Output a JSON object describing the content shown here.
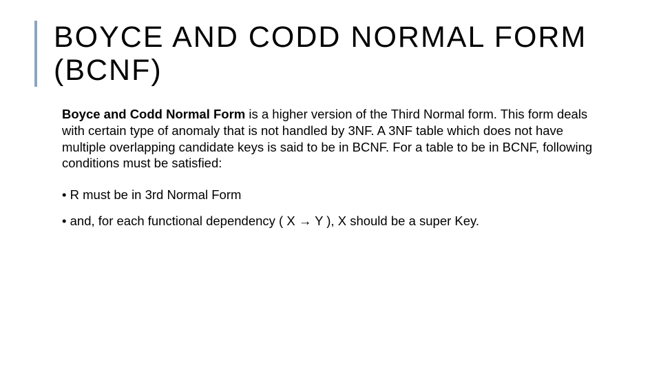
{
  "title": "BOYCE AND CODD NORMAL FORM (BCNF)",
  "paragraph": {
    "lead": "Boyce and Codd Normal Form",
    "rest": " is a higher version of the Third Normal form. This form deals with certain type of anomaly that is not handled by 3NF. A 3NF table which does not have multiple overlapping candidate keys is said to be in BCNF. For a table to be in BCNF, following conditions must be satisfied:"
  },
  "bullets": [
    "R must be in 3rd Normal Form",
    "and, for each functional dependency ( X → Y ), X should be a super Key."
  ],
  "colors": {
    "accent": "#8ca5c0",
    "background": "#ffffff",
    "text": "#000000"
  },
  "typography": {
    "title_fontsize": 43,
    "title_letterspacing": 2,
    "body_fontsize": 18.5,
    "font_family": "Arial"
  }
}
